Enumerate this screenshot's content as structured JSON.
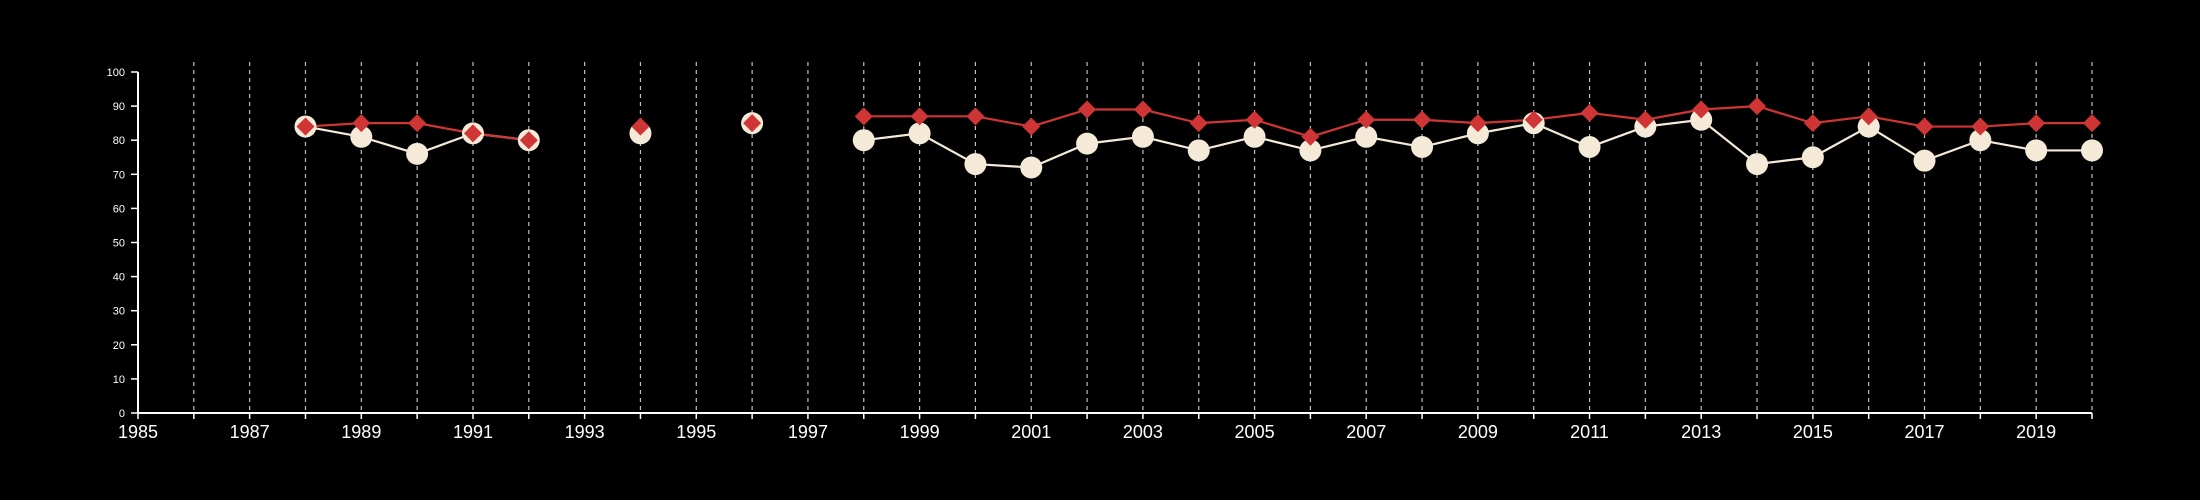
{
  "chart_data": {
    "type": "line",
    "title": "",
    "xlabel": "",
    "ylabel": "",
    "xlim": [
      1985,
      2020
    ],
    "ylim": [
      0,
      100
    ],
    "xticks": [
      1985,
      1987,
      1989,
      1991,
      1993,
      1995,
      1997,
      1999,
      2001,
      2003,
      2005,
      2007,
      2009,
      2011,
      2013,
      2015,
      2017,
      2019
    ],
    "yticks": [
      0,
      10,
      20,
      30,
      40,
      50,
      60,
      70,
      80,
      90,
      100
    ],
    "grid": "vertical dashed lines at each year",
    "background": "#000000",
    "series": [
      {
        "marker": "circle",
        "color": "#f5ead8",
        "x": [
          1988,
          1989,
          1990,
          1991,
          1992,
          1994,
          1996,
          1998,
          1999,
          2000,
          2001,
          2002,
          2003,
          2004,
          2005,
          2006,
          2007,
          2008,
          2009,
          2010,
          2011,
          2012,
          2013,
          2014,
          2015,
          2016,
          2017,
          2018,
          2019,
          2020
        ],
        "values": [
          84,
          81,
          76,
          82,
          80,
          82,
          85,
          80,
          82,
          73,
          72,
          79,
          81,
          77,
          81,
          77,
          81,
          78,
          82,
          85,
          78,
          84,
          86,
          73,
          75,
          84,
          74,
          80,
          77,
          77
        ]
      },
      {
        "marker": "diamond",
        "color": "#d03535",
        "x": [
          1988,
          1989,
          1990,
          1991,
          1992,
          1994,
          1996,
          1998,
          1999,
          2000,
          2001,
          2002,
          2003,
          2004,
          2005,
          2006,
          2007,
          2008,
          2009,
          2010,
          2011,
          2012,
          2013,
          2014,
          2015,
          2016,
          2017,
          2018,
          2019,
          2020
        ],
        "values": [
          84,
          85,
          85,
          82,
          80,
          84,
          85,
          87,
          87,
          87,
          84,
          89,
          89,
          85,
          86,
          81,
          86,
          86,
          85,
          86,
          88,
          86,
          89,
          90,
          85,
          87,
          84,
          84,
          85,
          85
        ]
      }
    ]
  }
}
